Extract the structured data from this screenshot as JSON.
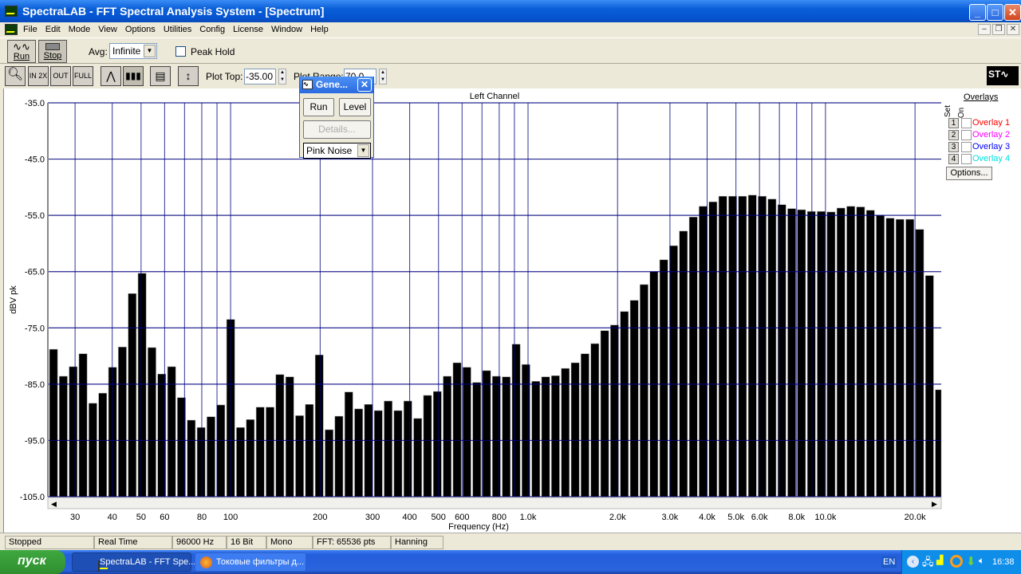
{
  "window": {
    "title": "SpectraLAB - FFT Spectral Analysis System - [Spectrum]",
    "controls": [
      "minimize",
      "maximize",
      "close"
    ]
  },
  "menu": [
    "File",
    "Edit",
    "Mode",
    "View",
    "Options",
    "Utilities",
    "Config",
    "License",
    "Window",
    "Help"
  ],
  "toolbar": {
    "run_label": "Run",
    "stop_label": "Stop",
    "avg_label": "Avg:",
    "avg_value": "Infinite",
    "peak_hold_label": "Peak Hold",
    "peak_hold_checked": false
  },
  "toolbar2": {
    "buttons": [
      "zoom",
      "zoom-in-2x",
      "zoom-out-2x",
      "zoom-out-full",
      "line-plot",
      "bar-plot",
      "display-settings",
      "autoscale"
    ],
    "plot_top_label": "Plot Top:",
    "plot_top_value": "-35.00",
    "plot_range_label": "Plot Range:",
    "plot_range_value": "70.0"
  },
  "generator": {
    "title": "Gene...",
    "run_label": "Run",
    "level_label": "Level",
    "details_label": "Details...",
    "signal_value": "Pink Noise"
  },
  "overlays": {
    "title": "Overlays",
    "set_label": "Set",
    "on_label": "On",
    "items": [
      {
        "num": "1",
        "label": "Overlay 1",
        "color": "#ff0000"
      },
      {
        "num": "2",
        "label": "Overlay 2",
        "color": "#ff00ff"
      },
      {
        "num": "3",
        "label": "Overlay 3",
        "color": "#0000ff"
      },
      {
        "num": "4",
        "label": "Overlay 4",
        "color": "#00e0e0"
      }
    ],
    "options_label": "Options..."
  },
  "chart_data": {
    "type": "bar",
    "title": "Left Channel",
    "xlabel": "Frequency (Hz)",
    "ylabel": "dBV pk",
    "xscale": "log",
    "xlim": [
      24.3,
      24500
    ],
    "ylim": [
      -105,
      -35
    ],
    "grid": true,
    "yticks": [
      -35,
      -45,
      -55,
      -65,
      -75,
      -85,
      -95,
      -105
    ],
    "ytick_labels": [
      "-35.0",
      "-45.0",
      "-55.0",
      "-65.0",
      "-75.0",
      "-85.0",
      "-95.0",
      "-105.0"
    ],
    "xgrid": [
      30,
      40,
      50,
      60,
      70,
      80,
      90,
      100,
      200,
      300,
      400,
      500,
      600,
      700,
      800,
      900,
      1000,
      2000,
      3000,
      4000,
      5000,
      6000,
      7000,
      8000,
      9000,
      10000,
      20000
    ],
    "xticks": [
      30,
      40,
      50,
      60,
      80,
      100,
      200,
      300,
      400,
      500,
      600,
      800,
      1000,
      2000,
      3000,
      4000,
      5000,
      6000,
      8000,
      10000,
      20000
    ],
    "xtick_labels": [
      "30",
      "40",
      "50",
      "60",
      "80",
      "100",
      "200",
      "300",
      "400",
      "500",
      "600",
      "800",
      "1.0k",
      "2.0k",
      "3.0k",
      "4.0k",
      "5.0k",
      "6.0k",
      "8.0k",
      "10.0k",
      "20.0k"
    ],
    "bar_color": "#000000",
    "grid_color": "#000080",
    "values": [
      -78.8,
      -83.6,
      -81.9,
      -79.6,
      -88.4,
      -86.6,
      -82.0,
      -78.4,
      -68.9,
      -65.3,
      -78.5,
      -83.2,
      -81.9,
      -87.4,
      -91.4,
      -92.7,
      -90.8,
      -88.7,
      -73.5,
      -92.7,
      -91.3,
      -89.1,
      -89.1,
      -83.3,
      -83.7,
      -90.6,
      -88.6,
      -79.8,
      -93.1,
      -90.7,
      -86.4,
      -89.4,
      -88.6,
      -89.7,
      -88.0,
      -89.7,
      -88.0,
      -91.1,
      -87.0,
      -86.3,
      -83.6,
      -81.2,
      -82.0,
      -84.7,
      -82.6,
      -83.6,
      -83.7,
      -77.9,
      -81.5,
      -84.5,
      -83.7,
      -83.5,
      -82.2,
      -81.2,
      -79.6,
      -77.8,
      -75.5,
      -74.5,
      -72.1,
      -70.1,
      -67.3,
      -65.0,
      -62.9,
      -60.4,
      -57.8,
      -55.3,
      -53.4,
      -52.6,
      -51.6,
      -51.6,
      -51.6,
      -51.4,
      -51.6,
      -52.1,
      -53.1,
      -53.8,
      -54.0,
      -54.3,
      -54.3,
      -54.4,
      -53.7,
      -53.4,
      -53.5,
      -54.1,
      -55.0,
      -55.5,
      -55.7,
      -55.7,
      -57.5,
      -65.7,
      -86.0
    ]
  },
  "status": [
    "Stopped",
    "Real Time",
    "96000 Hz",
    "16 Bit",
    "Mono",
    "FFT: 65536 pts",
    "Hanning"
  ],
  "taskbar": {
    "start_label": "пуск",
    "tasks": [
      "SpectraLAB - FFT Spe...",
      "Токовые фильтры д..."
    ],
    "lang": "EN",
    "clock": "16:38"
  }
}
